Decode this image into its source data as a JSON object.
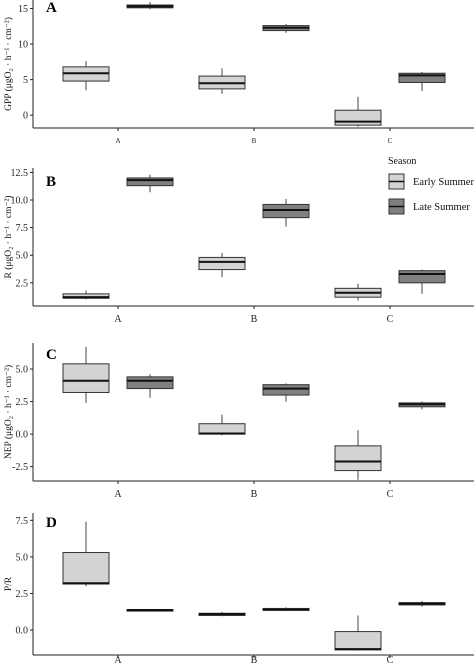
{
  "legend": {
    "title": "Season",
    "items": [
      {
        "label": "Early Summer",
        "color": "#d3d3d3"
      },
      {
        "label": "Late Summer",
        "color": "#808080"
      }
    ]
  },
  "chart_data": [
    {
      "panel": "A",
      "type": "box",
      "ylabel": "GPP (μgO₂ · h⁻¹ · cm⁻²)",
      "ylim": [
        -1.8,
        16.2
      ],
      "yticks": [
        "0",
        "5",
        "10",
        "15"
      ],
      "categories": [
        "A",
        "B",
        "C"
      ],
      "series": [
        {
          "name": "Early Summer",
          "boxes": [
            {
              "min": 3.5,
              "q1": 4.8,
              "median": 5.9,
              "q3": 6.8,
              "max": 7.6
            },
            {
              "min": 3.0,
              "q1": 3.7,
              "median": 4.5,
              "q3": 5.5,
              "max": 6.6
            },
            {
              "min": -1.6,
              "q1": -1.4,
              "median": -0.9,
              "q3": 0.7,
              "max": 2.6
            }
          ]
        },
        {
          "name": "Late Summer",
          "boxes": [
            {
              "min": 14.9,
              "q1": 15.1,
              "median": 15.3,
              "q3": 15.5,
              "max": 15.9
            },
            {
              "min": 11.6,
              "q1": 11.9,
              "median": 12.3,
              "q3": 12.6,
              "max": 12.8
            },
            {
              "min": 3.4,
              "q1": 4.6,
              "median": 5.6,
              "q3": 5.9,
              "max": 6.1
            }
          ]
        }
      ]
    },
    {
      "panel": "B",
      "type": "box",
      "ylabel": "R (μgO₂ · h⁻¹ · cm⁻²)",
      "ylim": [
        0.4,
        12.9
      ],
      "yticks": [
        "2.5",
        "5.0",
        "7.5",
        "10.0",
        "12.5"
      ],
      "categories": [
        "A",
        "B",
        "C"
      ],
      "series": [
        {
          "name": "Early Summer",
          "boxes": [
            {
              "min": 1.0,
              "q1": 1.1,
              "median": 1.2,
              "q3": 1.5,
              "max": 1.8
            },
            {
              "min": 3.0,
              "q1": 3.7,
              "median": 4.4,
              "q3": 4.8,
              "max": 5.2
            },
            {
              "min": 0.9,
              "q1": 1.2,
              "median": 1.6,
              "q3": 2.0,
              "max": 2.4
            }
          ]
        },
        {
          "name": "Late Summer",
          "boxes": [
            {
              "min": 10.7,
              "q1": 11.3,
              "median": 11.8,
              "q3": 12.0,
              "max": 12.3
            },
            {
              "min": 7.6,
              "q1": 8.4,
              "median": 9.1,
              "q3": 9.6,
              "max": 10.1
            },
            {
              "min": 1.5,
              "q1": 2.5,
              "median": 3.3,
              "q3": 3.6,
              "max": 3.7
            }
          ]
        }
      ]
    },
    {
      "panel": "C",
      "type": "box",
      "ylabel": "NEP (μgO₂ · h⁻¹ · cm⁻²)",
      "ylim": [
        -3.6,
        7.0
      ],
      "yticks": [
        "-2.5",
        "0.0",
        "2.5",
        "5.0"
      ],
      "categories": [
        "A",
        "B",
        "C"
      ],
      "series": [
        {
          "name": "Early Summer",
          "boxes": [
            {
              "min": 2.4,
              "q1": 3.2,
              "median": 4.1,
              "q3": 5.4,
              "max": 6.7
            },
            {
              "min": -0.1,
              "q1": 0.0,
              "median": 0.05,
              "q3": 0.8,
              "max": 1.5
            },
            {
              "min": -3.5,
              "q1": -2.8,
              "median": -2.1,
              "q3": -0.9,
              "max": 0.3
            }
          ]
        },
        {
          "name": "Late Summer",
          "boxes": [
            {
              "min": 2.8,
              "q1": 3.5,
              "median": 4.1,
              "q3": 4.4,
              "max": 4.6
            },
            {
              "min": 2.5,
              "q1": 3.0,
              "median": 3.5,
              "q3": 3.8,
              "max": 3.9
            },
            {
              "min": 1.9,
              "q1": 2.1,
              "median": 2.3,
              "q3": 2.4,
              "max": 2.5
            }
          ]
        }
      ]
    },
    {
      "panel": "D",
      "type": "box",
      "ylabel": "P/R",
      "ylim": [
        -1.7,
        8.0
      ],
      "yticks": [
        "0.0",
        "2.5",
        "5.0",
        "7.5"
      ],
      "categories": [
        "A",
        "B",
        "C"
      ],
      "series": [
        {
          "name": "Early Summer",
          "boxes": [
            {
              "min": 3.0,
              "q1": 3.15,
              "median": 3.2,
              "q3": 5.3,
              "max": 7.4
            },
            {
              "min": 0.95,
              "q1": 1.0,
              "median": 1.1,
              "q3": 1.15,
              "max": 1.25
            },
            {
              "min": -1.4,
              "q1": -1.35,
              "median": -1.3,
              "q3": -0.1,
              "max": 1.0
            }
          ]
        },
        {
          "name": "Late Summer",
          "boxes": [
            {
              "min": 1.3,
              "q1": 1.33,
              "median": 1.37,
              "q3": 1.4,
              "max": 1.45
            },
            {
              "min": 1.3,
              "q1": 1.35,
              "median": 1.4,
              "q3": 1.48,
              "max": 1.55
            },
            {
              "min": 1.6,
              "q1": 1.72,
              "median": 1.8,
              "q3": 1.88,
              "max": 2.0
            }
          ]
        }
      ]
    }
  ]
}
